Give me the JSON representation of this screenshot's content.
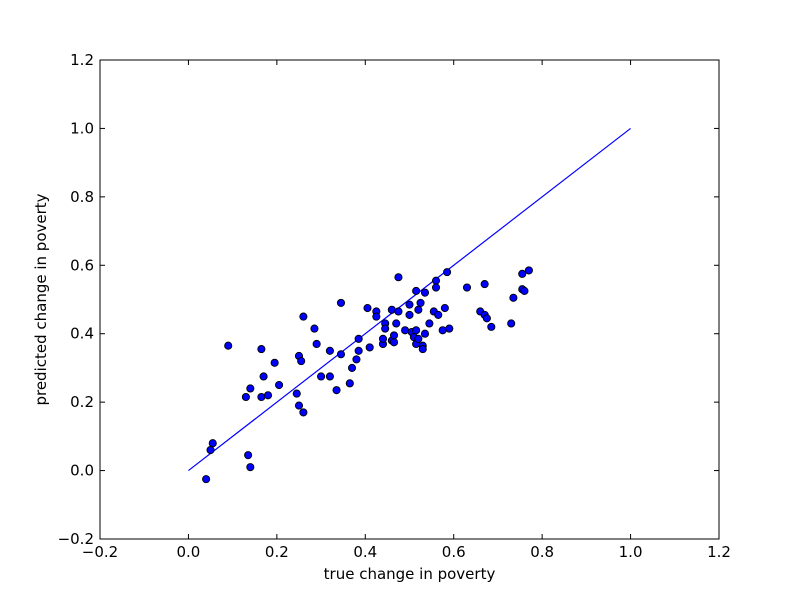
{
  "chart_data": {
    "type": "scatter",
    "title": "",
    "xlabel": "true change in poverty",
    "ylabel": "predicted change in poverty",
    "xlim": [
      -0.2,
      1.2
    ],
    "ylim": [
      -0.2,
      1.2
    ],
    "xticks": [
      -0.2,
      0.0,
      0.2,
      0.4,
      0.6,
      0.8,
      1.0,
      1.2
    ],
    "yticks": [
      -0.2,
      0.0,
      0.2,
      0.4,
      0.6,
      0.8,
      1.0,
      1.2
    ],
    "xtick_labels": [
      "−0.2",
      "0.0",
      "0.2",
      "0.4",
      "0.6",
      "0.8",
      "1.0",
      "1.2"
    ],
    "ytick_labels": [
      "−0.2",
      "0.0",
      "0.2",
      "0.4",
      "0.6",
      "0.8",
      "1.0",
      "1.2"
    ],
    "grid": false,
    "reference_line": {
      "x": [
        0.0,
        1.0
      ],
      "y": [
        0.0,
        1.0
      ],
      "color": "#0000ff"
    },
    "marker_color": "#0000ff",
    "points": [
      [
        0.04,
        -0.025
      ],
      [
        0.05,
        0.06
      ],
      [
        0.055,
        0.08
      ],
      [
        0.09,
        0.365
      ],
      [
        0.13,
        0.215
      ],
      [
        0.135,
        0.045
      ],
      [
        0.14,
        0.01
      ],
      [
        0.14,
        0.24
      ],
      [
        0.165,
        0.215
      ],
      [
        0.165,
        0.355
      ],
      [
        0.17,
        0.275
      ],
      [
        0.18,
        0.22
      ],
      [
        0.195,
        0.315
      ],
      [
        0.205,
        0.25
      ],
      [
        0.245,
        0.225
      ],
      [
        0.25,
        0.19
      ],
      [
        0.25,
        0.335
      ],
      [
        0.255,
        0.32
      ],
      [
        0.26,
        0.17
      ],
      [
        0.26,
        0.45
      ],
      [
        0.285,
        0.415
      ],
      [
        0.29,
        0.37
      ],
      [
        0.3,
        0.275
      ],
      [
        0.32,
        0.35
      ],
      [
        0.32,
        0.275
      ],
      [
        0.335,
        0.235
      ],
      [
        0.345,
        0.34
      ],
      [
        0.345,
        0.49
      ],
      [
        0.365,
        0.255
      ],
      [
        0.37,
        0.3
      ],
      [
        0.38,
        0.325
      ],
      [
        0.385,
        0.385
      ],
      [
        0.385,
        0.35
      ],
      [
        0.405,
        0.475
      ],
      [
        0.41,
        0.36
      ],
      [
        0.425,
        0.465
      ],
      [
        0.425,
        0.45
      ],
      [
        0.44,
        0.37
      ],
      [
        0.44,
        0.385
      ],
      [
        0.445,
        0.43
      ],
      [
        0.445,
        0.415
      ],
      [
        0.46,
        0.38
      ],
      [
        0.46,
        0.47
      ],
      [
        0.465,
        0.395
      ],
      [
        0.465,
        0.375
      ],
      [
        0.47,
        0.43
      ],
      [
        0.475,
        0.565
      ],
      [
        0.475,
        0.465
      ],
      [
        0.49,
        0.41
      ],
      [
        0.5,
        0.485
      ],
      [
        0.5,
        0.455
      ],
      [
        0.505,
        0.405
      ],
      [
        0.51,
        0.39
      ],
      [
        0.515,
        0.37
      ],
      [
        0.515,
        0.41
      ],
      [
        0.515,
        0.525
      ],
      [
        0.52,
        0.47
      ],
      [
        0.52,
        0.385
      ],
      [
        0.525,
        0.49
      ],
      [
        0.53,
        0.365
      ],
      [
        0.53,
        0.355
      ],
      [
        0.535,
        0.52
      ],
      [
        0.535,
        0.4
      ],
      [
        0.545,
        0.43
      ],
      [
        0.555,
        0.465
      ],
      [
        0.56,
        0.555
      ],
      [
        0.56,
        0.535
      ],
      [
        0.565,
        0.455
      ],
      [
        0.575,
        0.41
      ],
      [
        0.58,
        0.475
      ],
      [
        0.585,
        0.58
      ],
      [
        0.59,
        0.415
      ],
      [
        0.63,
        0.535
      ],
      [
        0.66,
        0.465
      ],
      [
        0.67,
        0.545
      ],
      [
        0.67,
        0.455
      ],
      [
        0.675,
        0.445
      ],
      [
        0.685,
        0.42
      ],
      [
        0.73,
        0.43
      ],
      [
        0.735,
        0.505
      ],
      [
        0.755,
        0.575
      ],
      [
        0.755,
        0.53
      ],
      [
        0.76,
        0.525
      ],
      [
        0.77,
        0.585
      ]
    ]
  }
}
